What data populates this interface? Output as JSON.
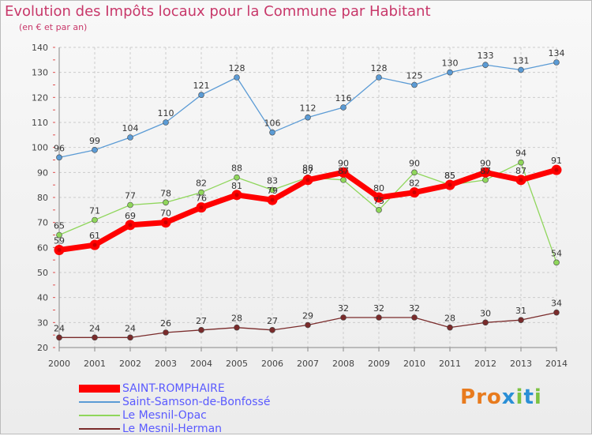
{
  "title": "Evolution des Impôts locaux pour la Commune par Habitant",
  "subtitle": "(en € et par an)",
  "logo": {
    "text": "Proxiti",
    "letters": [
      "P",
      "r",
      "o",
      "x",
      "i",
      "t",
      "i"
    ],
    "colors": [
      "#e87b1e",
      "#e87b1e",
      "#e87b1e",
      "#2a8fd6",
      "#7cc242",
      "#2a8fd6",
      "#7cc242"
    ]
  },
  "chart_data": {
    "type": "line",
    "x": [
      "2000",
      "2001",
      "2002",
      "2003",
      "2004",
      "2005",
      "2006",
      "2007",
      "2008",
      "2009",
      "2010",
      "2011",
      "2012",
      "2013",
      "2014"
    ],
    "ylim": [
      20,
      140
    ],
    "yticks": [
      "20",
      "30",
      "40",
      "50",
      "60",
      "70",
      "80",
      "90",
      "100",
      "110",
      "120",
      "130",
      "140"
    ],
    "grid": true,
    "legend_placement": "bottom-left",
    "series": [
      {
        "name": "SAINT-ROMPHAIRE",
        "values": [
          59,
          61,
          69,
          70,
          76,
          81,
          79,
          87,
          90,
          80,
          82,
          85,
          90,
          87,
          91
        ],
        "labels": [
          "59",
          "61",
          "69",
          "70",
          "76",
          "81",
          "79",
          "87",
          "90",
          "80",
          "82",
          "85",
          "90",
          "87",
          "91"
        ],
        "color": "#ff0000",
        "style": "bold"
      },
      {
        "name": "Saint-Samson-de-Bonfossé",
        "values": [
          96,
          99,
          104,
          110,
          121,
          128,
          106,
          112,
          116,
          128,
          125,
          130,
          133,
          131,
          134
        ],
        "labels": [
          "96",
          "99",
          "104",
          "110",
          "121",
          "128",
          "106",
          "112",
          "116",
          "128",
          "125",
          "130",
          "133",
          "131",
          "134"
        ],
        "color": "#5b9bd5",
        "style": "normal"
      },
      {
        "name": "Le Mesnil-Opac",
        "values": [
          65,
          71,
          77,
          78,
          82,
          88,
          83,
          88,
          87,
          75,
          90,
          85,
          87,
          94,
          54
        ],
        "labels": [
          "65",
          "71",
          "77",
          "78",
          "82",
          "88",
          "83",
          "88",
          "87",
          "75",
          "90",
          "85",
          "87",
          "94",
          "54"
        ],
        "color": "#8fd65b",
        "style": "normal"
      },
      {
        "name": "Le Mesnil-Herman",
        "values": [
          24,
          24,
          24,
          26,
          27,
          28,
          27,
          29,
          32,
          32,
          32,
          28,
          30,
          31,
          34
        ],
        "labels": [
          "24",
          "24",
          "24",
          "26",
          "27",
          "28",
          "27",
          "29",
          "32",
          "32",
          "32",
          "28",
          "30",
          "31",
          "34"
        ],
        "color": "#7a2b2b",
        "style": "normal"
      }
    ]
  }
}
